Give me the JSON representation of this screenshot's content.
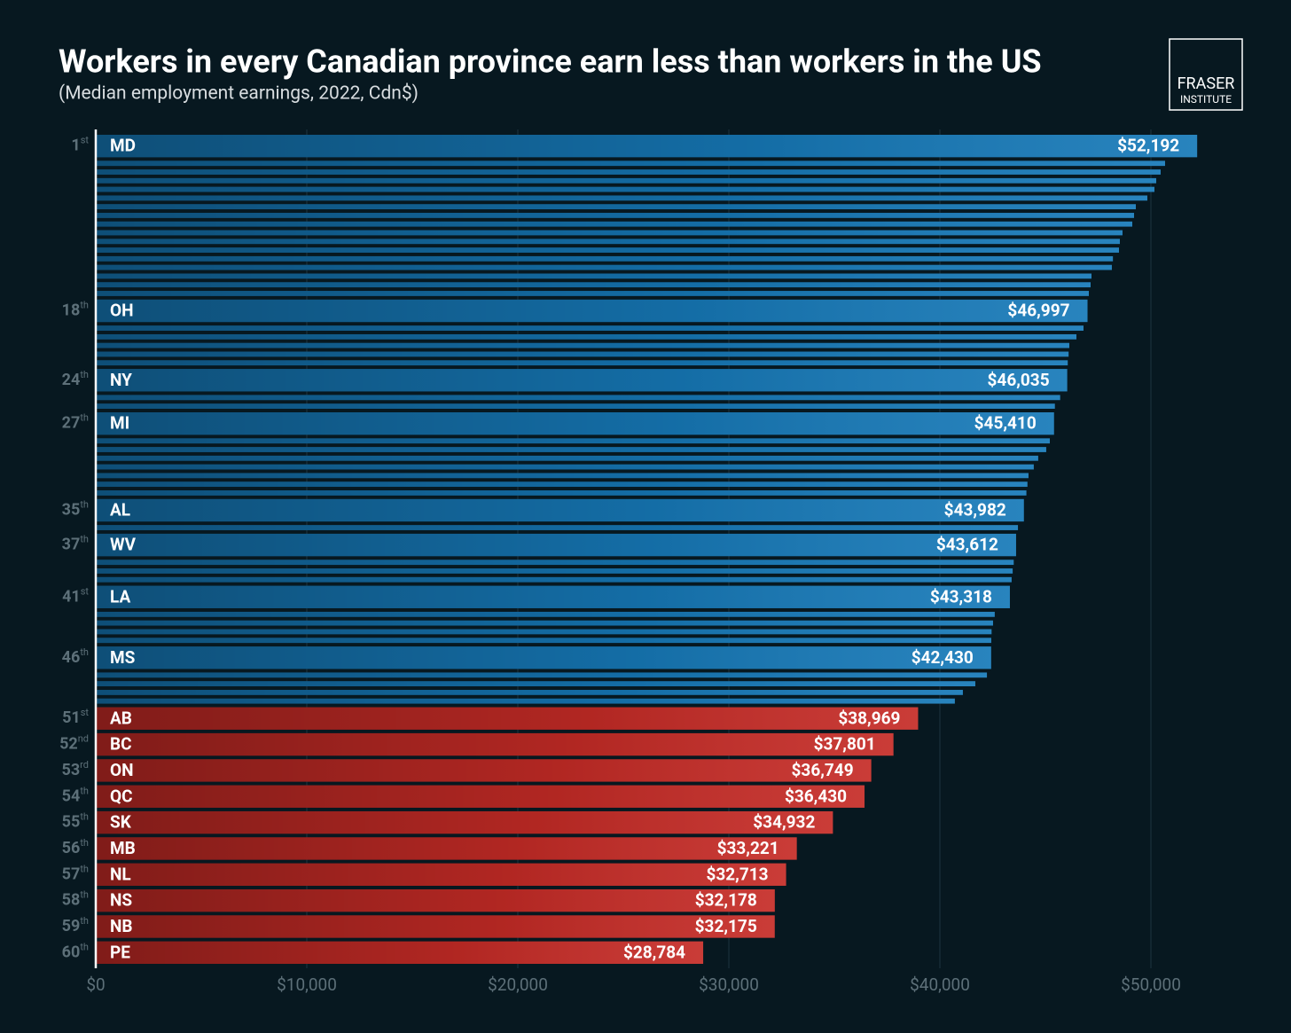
{
  "chart_data": {
    "type": "bar",
    "title": "Workers in every Canadian province earn less than workers in the US",
    "subtitle": "(Median employment earnings, 2022, Cdn$)",
    "logo": [
      "FRASER",
      "INSTITUTE"
    ],
    "categories": [
      "MD",
      null,
      null,
      null,
      null,
      null,
      null,
      null,
      null,
      null,
      null,
      null,
      null,
      null,
      null,
      null,
      null,
      "OH",
      null,
      null,
      null,
      null,
      null,
      "NY",
      null,
      null,
      "MI",
      null,
      null,
      null,
      null,
      null,
      null,
      null,
      "AL",
      null,
      "WV",
      null,
      null,
      null,
      "LA",
      null,
      null,
      null,
      null,
      "MS",
      null,
      null,
      null,
      null,
      "AB",
      "BC",
      "ON",
      "QC",
      "SK",
      "MB",
      "NL",
      "NS",
      "NB",
      "PE"
    ],
    "ranks": [
      "1st",
      null,
      null,
      null,
      null,
      null,
      null,
      null,
      null,
      null,
      null,
      null,
      null,
      null,
      null,
      null,
      null,
      "18th",
      null,
      null,
      null,
      null,
      null,
      "24th",
      null,
      null,
      "27th",
      null,
      null,
      null,
      null,
      null,
      null,
      null,
      "35th",
      null,
      "37th",
      null,
      null,
      null,
      "41st",
      null,
      null,
      null,
      null,
      "46th",
      null,
      null,
      null,
      null,
      "51st",
      "52nd",
      "53rd",
      "54th",
      "55th",
      "56th",
      "57th",
      "58th",
      "59th",
      "60th"
    ],
    "values": [
      52192,
      50672,
      50462,
      50252,
      50168,
      49832,
      49286,
      49202,
      49118,
      48655,
      48529,
      48487,
      48200,
      48150,
      47185,
      47143,
      47059,
      46997,
      46807,
      46471,
      46134,
      46100,
      46060,
      46035,
      45700,
      45450,
      45410,
      45210,
      45040,
      44660,
      44450,
      44200,
      44150,
      44100,
      43982,
      43700,
      43612,
      43500,
      43450,
      43400,
      43318,
      42600,
      42520,
      42450,
      42435,
      42430,
      42230,
      41680,
      41090,
      40710,
      38969,
      37801,
      36749,
      36430,
      34932,
      33221,
      32713,
      32178,
      32175,
      28784
    ],
    "value_labels": [
      "$52,192",
      null,
      null,
      null,
      null,
      null,
      null,
      null,
      null,
      null,
      null,
      null,
      null,
      null,
      null,
      null,
      null,
      "$46,997",
      null,
      null,
      null,
      null,
      null,
      "$46,035",
      null,
      null,
      "$45,410",
      null,
      null,
      null,
      null,
      null,
      null,
      null,
      "$43,982",
      null,
      "$43,612",
      null,
      null,
      null,
      "$43,318",
      null,
      null,
      null,
      null,
      "$42,430",
      null,
      null,
      null,
      null,
      "$38,969",
      "$37,801",
      "$36,749",
      "$36,430",
      "$34,932",
      "$33,221",
      "$32,713",
      "$32,178",
      "$32,175",
      "$28,784"
    ],
    "colors": [
      "#1679b8",
      "#1679b8",
      "#1679b8",
      "#1679b8",
      "#1679b8",
      "#1679b8",
      "#1679b8",
      "#1679b8",
      "#1679b8",
      "#1679b8",
      "#1679b8",
      "#1679b8",
      "#1679b8",
      "#1679b8",
      "#1679b8",
      "#1679b8",
      "#1679b8",
      "#1679b8",
      "#1679b8",
      "#1679b8",
      "#1679b8",
      "#1679b8",
      "#1679b8",
      "#1679b8",
      "#1679b8",
      "#1679b8",
      "#1679b8",
      "#1679b8",
      "#1679b8",
      "#1679b8",
      "#1679b8",
      "#1679b8",
      "#1679b8",
      "#1679b8",
      "#1679b8",
      "#1679b8",
      "#1679b8",
      "#1679b8",
      "#1679b8",
      "#1679b8",
      "#1679b8",
      "#1679b8",
      "#1679b8",
      "#1679b8",
      "#1679b8",
      "#1679b8",
      "#1679b8",
      "#1679b8",
      "#1679b8",
      "#1679b8",
      "#c52b26",
      "#c52b26",
      "#c52b26",
      "#c52b26",
      "#c52b26",
      "#c52b26",
      "#c52b26",
      "#c52b26",
      "#c52b26",
      "#c52b26"
    ],
    "xlim": [
      0,
      56000
    ],
    "xticks": [
      {
        "value": 0,
        "label": "$0"
      },
      {
        "value": 10000,
        "label": "$10,000"
      },
      {
        "value": 20000,
        "label": "$20,000"
      },
      {
        "value": 30000,
        "label": "$30,000"
      },
      {
        "value": 40000,
        "label": "$40,000"
      },
      {
        "value": 50000,
        "label": "$50,000"
      }
    ],
    "grid": true
  }
}
